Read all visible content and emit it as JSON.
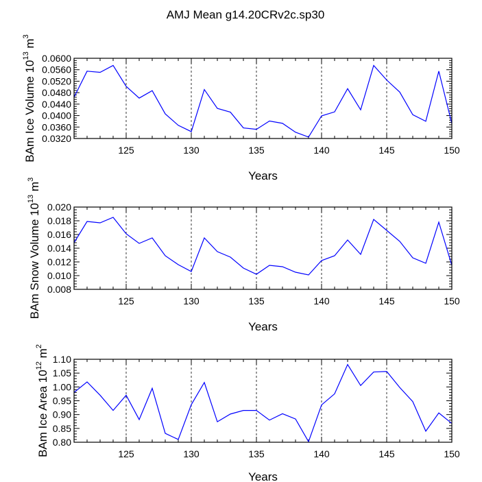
{
  "title": "AMJ Mean g14.20CRv2c.sp30",
  "colors": {
    "line": "#0000ff",
    "axis": "#000000",
    "grid": "#000000",
    "background": "#ffffff"
  },
  "chart_data": [
    {
      "type": "line",
      "ylabel_parts": [
        "BAm Ice Volume 10",
        "13",
        " m",
        "3"
      ],
      "xlabel": "Years",
      "xlim": [
        121,
        150
      ],
      "ylim": [
        0.032,
        0.06
      ],
      "yticks": [
        "0.0600",
        "0.0560",
        "0.0520",
        "0.0480",
        "0.0440",
        "0.0400",
        "0.0360",
        "0.0320"
      ],
      "xticks": [
        "125",
        "130",
        "135",
        "140",
        "145",
        "150"
      ],
      "grid_x": [
        125,
        130,
        135,
        140,
        145
      ],
      "x": [
        121,
        122,
        123,
        124,
        125,
        126,
        127,
        128,
        129,
        130,
        131,
        132,
        133,
        134,
        135,
        136,
        137,
        138,
        139,
        140,
        141,
        142,
        143,
        144,
        145,
        146,
        147,
        148,
        149,
        150
      ],
      "values": [
        0.0464,
        0.0555,
        0.0551,
        0.0575,
        0.0502,
        0.0461,
        0.0487,
        0.0406,
        0.0366,
        0.0344,
        0.0491,
        0.0425,
        0.0412,
        0.0357,
        0.0352,
        0.0381,
        0.0373,
        0.0342,
        0.0325,
        0.0399,
        0.0413,
        0.0494,
        0.042,
        0.0575,
        0.0524,
        0.0482,
        0.0403,
        0.038,
        0.0555,
        0.0372
      ]
    },
    {
      "type": "line",
      "ylabel_parts": [
        "BAm Snow Volume 10",
        "13",
        " m",
        "3"
      ],
      "xlabel": "Years",
      "xlim": [
        121,
        150
      ],
      "ylim": [
        0.008,
        0.02
      ],
      "yticks": [
        "0.020",
        "0.018",
        "0.016",
        "0.014",
        "0.012",
        "0.010",
        "0.008"
      ],
      "xticks": [
        "125",
        "130",
        "135",
        "140",
        "145",
        "150"
      ],
      "grid_x": [
        125,
        130,
        135,
        140,
        145
      ],
      "x": [
        121,
        122,
        123,
        124,
        125,
        126,
        127,
        128,
        129,
        130,
        131,
        132,
        133,
        134,
        135,
        136,
        137,
        138,
        139,
        140,
        141,
        142,
        143,
        144,
        145,
        146,
        147,
        148,
        149,
        150
      ],
      "values": [
        0.0148,
        0.0179,
        0.0177,
        0.0185,
        0.0161,
        0.0147,
        0.0155,
        0.0129,
        0.0116,
        0.0106,
        0.0155,
        0.0135,
        0.0127,
        0.0111,
        0.0102,
        0.0115,
        0.0113,
        0.0105,
        0.0101,
        0.0122,
        0.0129,
        0.0152,
        0.0131,
        0.0182,
        0.0166,
        0.015,
        0.0126,
        0.0118,
        0.0178,
        0.0115
      ]
    },
    {
      "type": "line",
      "ylabel_parts": [
        "BAm Ice Area 10",
        "12",
        " m",
        "2"
      ],
      "xlabel": "Years",
      "xlim": [
        121,
        150
      ],
      "ylim": [
        0.8,
        1.1
      ],
      "yticks": [
        "1.10",
        "1.05",
        "1.00",
        "0.95",
        "0.90",
        "0.85",
        "0.80"
      ],
      "xticks": [
        "125",
        "130",
        "135",
        "140",
        "145",
        "150"
      ],
      "grid_x": [
        125,
        130,
        135,
        140,
        145
      ],
      "x": [
        121,
        122,
        123,
        124,
        125,
        126,
        127,
        128,
        129,
        130,
        131,
        132,
        133,
        134,
        135,
        136,
        137,
        138,
        139,
        140,
        141,
        142,
        143,
        144,
        145,
        146,
        147,
        148,
        149,
        150
      ],
      "values": [
        0.98,
        1.018,
        0.97,
        0.915,
        0.97,
        0.882,
        0.995,
        0.832,
        0.81,
        0.936,
        1.016,
        0.874,
        0.902,
        0.915,
        0.915,
        0.88,
        0.903,
        0.884,
        0.802,
        0.935,
        0.975,
        1.081,
        1.005,
        1.054,
        1.056,
        0.998,
        0.947,
        0.84,
        0.906,
        0.868
      ]
    }
  ]
}
